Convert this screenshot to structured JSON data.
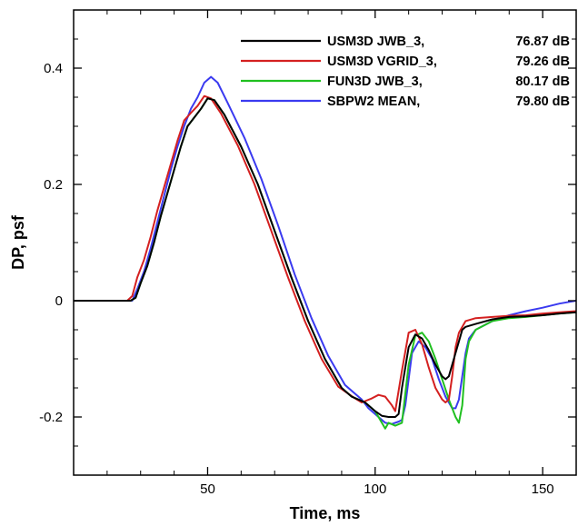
{
  "chart_data": {
    "type": "line",
    "xlabel": "Time, ms",
    "ylabel": "DP, psf",
    "xlim": [
      10,
      160
    ],
    "ylim": [
      -0.3,
      0.5
    ],
    "xticks": [
      50,
      100,
      150
    ],
    "yticks": [
      -0.2,
      0,
      0.2,
      0.4
    ],
    "ytick_labels": [
      "-0.2",
      "0",
      "0.2",
      "0.4"
    ],
    "grid": false,
    "legend_position": "top-right",
    "series": [
      {
        "name": "USM3D JWB_3,",
        "metric": "76.87 dB",
        "color": "#000000",
        "x": [
          10,
          27,
          28.5,
          30,
          32,
          34,
          36,
          38,
          40,
          42,
          44,
          46,
          48,
          50,
          52,
          55,
          60,
          65,
          70,
          75,
          80,
          85,
          90,
          93,
          95,
          97,
          100,
          102,
          104,
          106,
          107,
          108,
          110,
          112,
          114,
          116,
          118,
          120,
          121,
          122,
          123,
          125,
          126,
          127,
          130,
          135,
          140,
          145,
          150,
          155,
          160
        ],
        "y": [
          0,
          0,
          0.005,
          0.03,
          0.06,
          0.1,
          0.145,
          0.185,
          0.225,
          0.265,
          0.3,
          0.315,
          0.33,
          0.348,
          0.345,
          0.32,
          0.265,
          0.2,
          0.12,
          0.04,
          -0.035,
          -0.1,
          -0.15,
          -0.165,
          -0.17,
          -0.175,
          -0.19,
          -0.198,
          -0.2,
          -0.2,
          -0.195,
          -0.15,
          -0.08,
          -0.058,
          -0.065,
          -0.085,
          -0.11,
          -0.13,
          -0.135,
          -0.13,
          -0.11,
          -0.07,
          -0.05,
          -0.045,
          -0.04,
          -0.032,
          -0.028,
          -0.027,
          -0.025,
          -0.022,
          -0.02
        ]
      },
      {
        "name": "USM3D VGRID_3,",
        "metric": "79.26 dB",
        "color": "#d42020",
        "x": [
          10,
          26,
          27.5,
          29,
          31,
          33,
          35,
          37,
          39,
          41,
          43,
          45,
          47,
          49,
          51,
          54,
          59,
          64,
          69,
          74,
          79,
          84,
          89,
          92,
          94,
          96,
          99,
          101,
          103,
          105,
          106,
          108,
          110,
          112,
          114,
          116,
          118,
          120,
          121,
          122,
          123,
          124,
          125,
          127,
          130,
          135,
          140,
          145,
          150,
          155,
          160
        ],
        "y": [
          0,
          0,
          0.008,
          0.04,
          0.07,
          0.11,
          0.155,
          0.195,
          0.235,
          0.275,
          0.31,
          0.323,
          0.335,
          0.352,
          0.348,
          0.322,
          0.267,
          0.2,
          0.12,
          0.04,
          -0.035,
          -0.1,
          -0.148,
          -0.16,
          -0.168,
          -0.175,
          -0.168,
          -0.162,
          -0.165,
          -0.18,
          -0.19,
          -0.12,
          -0.055,
          -0.05,
          -0.075,
          -0.115,
          -0.15,
          -0.17,
          -0.175,
          -0.17,
          -0.13,
          -0.08,
          -0.055,
          -0.035,
          -0.03,
          -0.028,
          -0.026,
          -0.025,
          -0.022,
          -0.02,
          -0.018
        ]
      },
      {
        "name": "FUN3D JWB_3,",
        "metric": "80.17 dB",
        "color": "#20c020",
        "x": [
          10,
          27,
          28.5,
          30,
          32,
          34,
          36,
          38,
          40,
          42,
          44,
          46,
          48,
          50,
          52,
          55,
          60,
          65,
          70,
          75,
          80,
          85,
          90,
          93,
          95,
          97,
          100,
          102,
          103,
          104,
          106,
          108,
          109,
          110,
          112,
          114,
          116,
          118,
          120,
          122,
          124,
          125,
          126,
          127,
          128,
          130,
          135,
          140,
          145,
          150,
          155,
          160
        ],
        "y": [
          0,
          0,
          0.005,
          0.03,
          0.06,
          0.1,
          0.145,
          0.185,
          0.225,
          0.265,
          0.3,
          0.315,
          0.33,
          0.348,
          0.345,
          0.32,
          0.265,
          0.2,
          0.12,
          0.04,
          -0.035,
          -0.1,
          -0.15,
          -0.165,
          -0.17,
          -0.175,
          -0.19,
          -0.21,
          -0.22,
          -0.21,
          -0.215,
          -0.21,
          -0.16,
          -0.11,
          -0.06,
          -0.055,
          -0.07,
          -0.1,
          -0.135,
          -0.17,
          -0.2,
          -0.21,
          -0.18,
          -0.1,
          -0.07,
          -0.05,
          -0.035,
          -0.03,
          -0.028,
          -0.025,
          -0.022,
          -0.02
        ]
      },
      {
        "name": "SBPW2 MEAN,",
        "metric": "79.80 dB",
        "color": "#3a3af0",
        "x": [
          10,
          27.5,
          29,
          31,
          33,
          35,
          37,
          39,
          41,
          43,
          45,
          47,
          49,
          51,
          53,
          56,
          61,
          66,
          71,
          76,
          81,
          86,
          91,
          94,
          96,
          98,
          101,
          103,
          105,
          107,
          108,
          109,
          111,
          113,
          115,
          117,
          119,
          121,
          123,
          124,
          125,
          126,
          127,
          128,
          130,
          135,
          140,
          145,
          150,
          155,
          160
        ],
        "y": [
          0,
          0,
          0.02,
          0.05,
          0.09,
          0.135,
          0.18,
          0.225,
          0.265,
          0.3,
          0.33,
          0.35,
          0.375,
          0.385,
          0.375,
          0.34,
          0.28,
          0.21,
          0.13,
          0.045,
          -0.03,
          -0.095,
          -0.145,
          -0.16,
          -0.17,
          -0.185,
          -0.2,
          -0.21,
          -0.212,
          -0.208,
          -0.205,
          -0.18,
          -0.09,
          -0.07,
          -0.08,
          -0.1,
          -0.135,
          -0.165,
          -0.185,
          -0.185,
          -0.17,
          -0.13,
          -0.09,
          -0.065,
          -0.05,
          -0.035,
          -0.025,
          -0.018,
          -0.012,
          -0.005,
          0
        ]
      }
    ]
  }
}
